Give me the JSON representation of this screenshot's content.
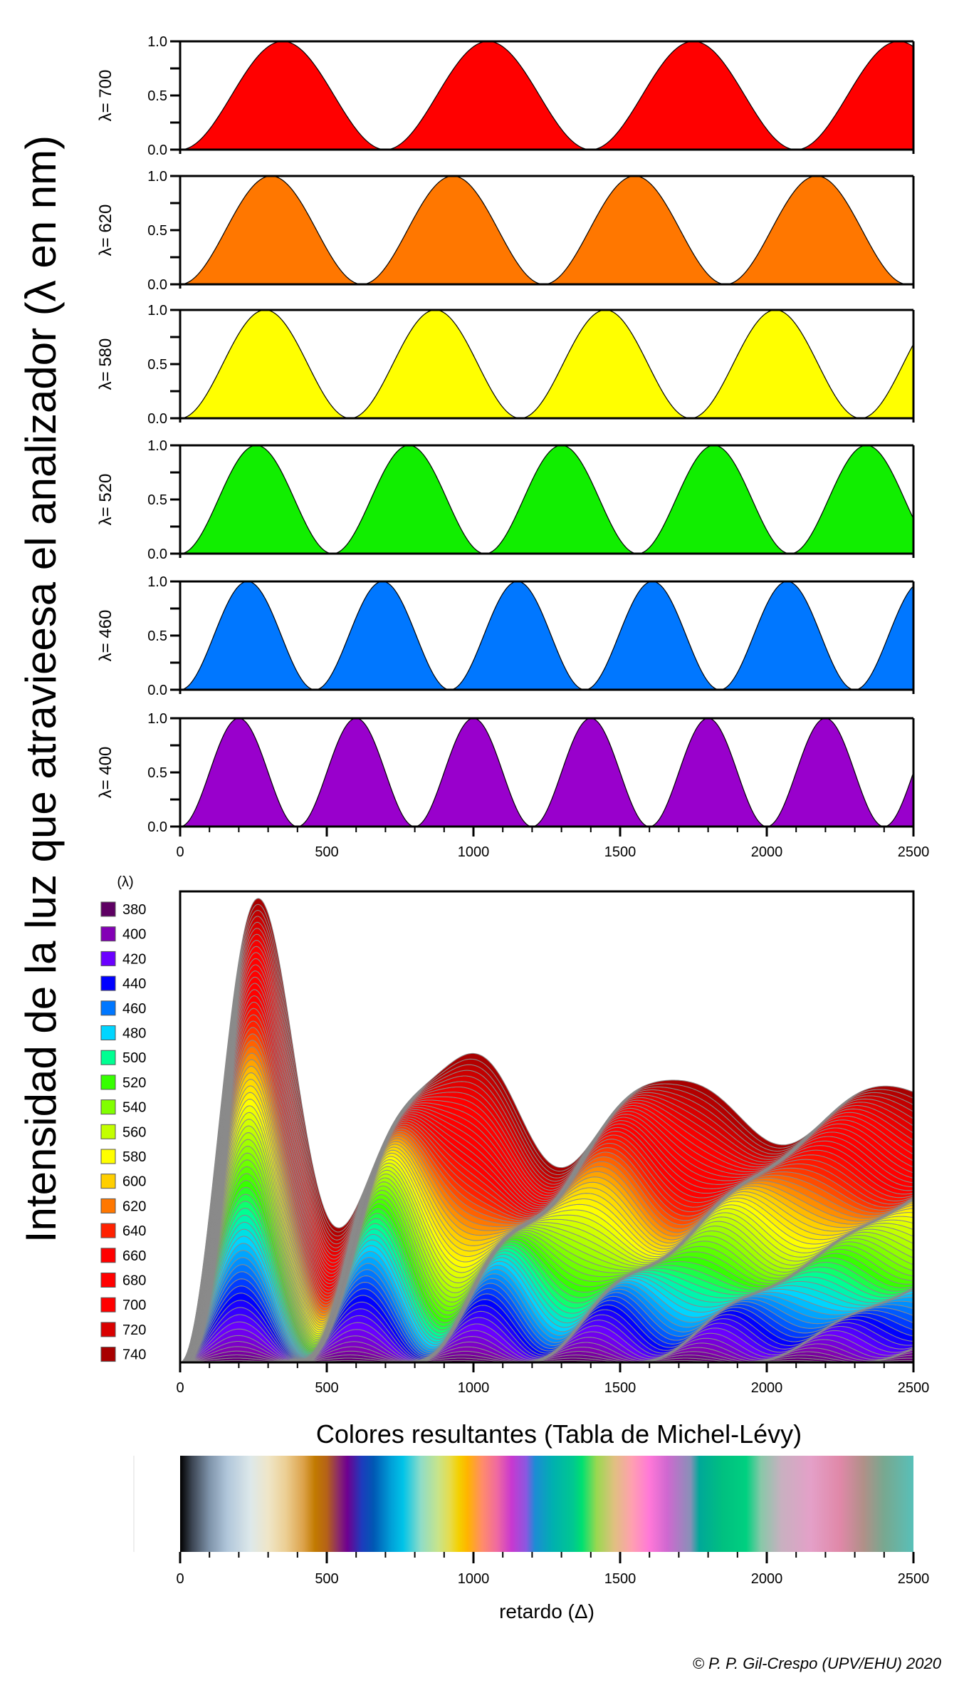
{
  "figure": {
    "y_axis_title": "Intensidad de la luz que atravieesa el analizador (λ en nm)",
    "credit": "© P. P. Gil-Crespo (UPV/EHU) 2020"
  },
  "chart_data": [
    {
      "id": "single-wavelength-panels",
      "type": "area",
      "description": "Transmitted intensity I = sin²(π·Δ/λ) vs retardation Δ for individual wavelengths",
      "x": {
        "range": [
          0,
          2500
        ],
        "ticks": [
          0,
          500,
          1000,
          1500,
          2000,
          2500
        ],
        "minor_step": 100
      },
      "y": {
        "range": [
          0,
          1
        ],
        "ticks": [
          "0.0",
          "0.5",
          "1.0"
        ],
        "minor_step": 0.25
      },
      "formula": "sin^2(pi*x/lambda)",
      "panels": [
        {
          "label": "λ= 700",
          "wavelength": 700,
          "color": "#ff0000"
        },
        {
          "label": "λ= 620",
          "wavelength": 620,
          "color": "#ff7700"
        },
        {
          "label": "λ= 580",
          "wavelength": 580,
          "color": "#ffff00"
        },
        {
          "label": "λ= 520",
          "wavelength": 520,
          "color": "#11ee00"
        },
        {
          "label": "λ= 460",
          "wavelength": 460,
          "color": "#0077ff"
        },
        {
          "label": "λ= 400",
          "wavelength": 400,
          "color": "#9900cc"
        }
      ]
    },
    {
      "id": "stacked-spectrum",
      "type": "area",
      "stacked": true,
      "description": "Stacked sin²(π·Δ/λ) curves for wavelengths 380–740 nm (fine steps of 5 nm, outlined in grey)",
      "x": {
        "range": [
          0,
          2500
        ],
        "ticks": [
          0,
          500,
          1000,
          1500,
          2000,
          2500
        ],
        "minor_step": 100
      },
      "legend_title": "(λ)",
      "legend_position": "left",
      "wavelength_step": 5,
      "series": [
        {
          "name": "380",
          "color": "#5e0063"
        },
        {
          "name": "400",
          "color": "#8300b5"
        },
        {
          "name": "420",
          "color": "#6a00ff"
        },
        {
          "name": "440",
          "color": "#0000ff"
        },
        {
          "name": "460",
          "color": "#0077ff"
        },
        {
          "name": "480",
          "color": "#00d5ff"
        },
        {
          "name": "500",
          "color": "#00ff92"
        },
        {
          "name": "520",
          "color": "#36ff00"
        },
        {
          "name": "540",
          "color": "#81ff00"
        },
        {
          "name": "560",
          "color": "#c3ff00"
        },
        {
          "name": "580",
          "color": "#ffff00"
        },
        {
          "name": "600",
          "color": "#ffcf00"
        },
        {
          "name": "620",
          "color": "#ff7700"
        },
        {
          "name": "640",
          "color": "#ff2100"
        },
        {
          "name": "660",
          "color": "#ff0000"
        },
        {
          "name": "680",
          "color": "#ff0000"
        },
        {
          "name": "700",
          "color": "#ff0000"
        },
        {
          "name": "720",
          "color": "#d90000"
        },
        {
          "name": "740",
          "color": "#a80000"
        }
      ]
    },
    {
      "id": "michel-levy-bar",
      "type": "heatmap",
      "title": "Colores resultantes (Tabla de Michel-Lévy)",
      "xlabel": "retardo (Δ)",
      "x": {
        "range": [
          0,
          2500
        ],
        "ticks": [
          0,
          500,
          1000,
          1500,
          2000,
          2500
        ],
        "minor_step": 100
      },
      "color_stops": [
        {
          "x": 0,
          "color": "#000000"
        },
        {
          "x": 40,
          "color": "#3b4452"
        },
        {
          "x": 100,
          "color": "#7e93aa"
        },
        {
          "x": 160,
          "color": "#b0c6da"
        },
        {
          "x": 240,
          "color": "#dde8ea"
        },
        {
          "x": 300,
          "color": "#efe6c8"
        },
        {
          "x": 360,
          "color": "#eccf94"
        },
        {
          "x": 420,
          "color": "#dca24a"
        },
        {
          "x": 460,
          "color": "#c27a00"
        },
        {
          "x": 500,
          "color": "#b56218"
        },
        {
          "x": 540,
          "color": "#8b2a6a"
        },
        {
          "x": 570,
          "color": "#6e0090"
        },
        {
          "x": 620,
          "color": "#1c3cbc"
        },
        {
          "x": 660,
          "color": "#0058b4"
        },
        {
          "x": 720,
          "color": "#00a0d8"
        },
        {
          "x": 760,
          "color": "#00c4e8"
        },
        {
          "x": 820,
          "color": "#8edcc8"
        },
        {
          "x": 880,
          "color": "#c8e48a"
        },
        {
          "x": 920,
          "color": "#e6dc4c"
        },
        {
          "x": 950,
          "color": "#f4d000"
        },
        {
          "x": 980,
          "color": "#ffb400"
        },
        {
          "x": 1030,
          "color": "#ff8c6a"
        },
        {
          "x": 1080,
          "color": "#f06aa0"
        },
        {
          "x": 1130,
          "color": "#c838d0"
        },
        {
          "x": 1180,
          "color": "#8a58e0"
        },
        {
          "x": 1210,
          "color": "#1c8cd4"
        },
        {
          "x": 1270,
          "color": "#00b0b0"
        },
        {
          "x": 1340,
          "color": "#00c890"
        },
        {
          "x": 1370,
          "color": "#00e070"
        },
        {
          "x": 1420,
          "color": "#9ad850"
        },
        {
          "x": 1480,
          "color": "#e0c080"
        },
        {
          "x": 1540,
          "color": "#ffa0b0"
        },
        {
          "x": 1600,
          "color": "#ff78d8"
        },
        {
          "x": 1660,
          "color": "#d068d0"
        },
        {
          "x": 1740,
          "color": "#8890b8"
        },
        {
          "x": 1770,
          "color": "#00a898"
        },
        {
          "x": 1850,
          "color": "#00c080"
        },
        {
          "x": 1930,
          "color": "#00d080"
        },
        {
          "x": 1980,
          "color": "#88c8a8"
        },
        {
          "x": 2050,
          "color": "#c8b0c0"
        },
        {
          "x": 2150,
          "color": "#e4a0c8"
        },
        {
          "x": 2250,
          "color": "#e088a8"
        },
        {
          "x": 2330,
          "color": "#b09088"
        },
        {
          "x": 2400,
          "color": "#78a890"
        },
        {
          "x": 2500,
          "color": "#58c0b8"
        }
      ]
    }
  ]
}
